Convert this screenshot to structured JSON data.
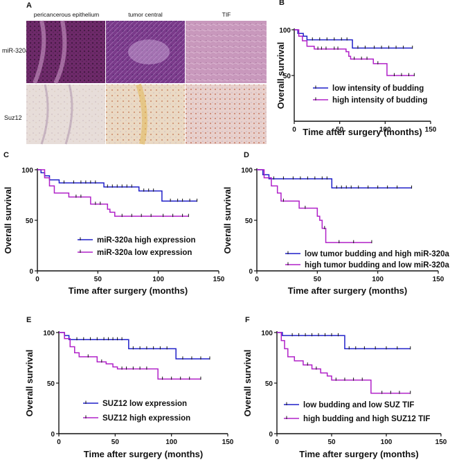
{
  "histology": {
    "panel_label": "A",
    "columns": [
      "pericancerous epithelium",
      "tumor central",
      "TIF"
    ],
    "rows": [
      "miR-320a",
      "Suz12"
    ],
    "tile_colors": {
      "miR-320a": [
        "#6e2a6a",
        "#7a3a8a",
        "#c898bc"
      ],
      "Suz12": [
        "#e7ddd9",
        "#ead9c4",
        "#e8d0cc"
      ]
    }
  },
  "chart_data": [
    {
      "panel": "B",
      "type": "line",
      "subtype": "kaplan-meier",
      "xlabel": "Time after surgery (months)",
      "ylabel": "Overall survival",
      "xlim": [
        0,
        150
      ],
      "ylim": [
        0,
        100
      ],
      "xticks": [
        "0",
        "50",
        "100",
        "150"
      ],
      "yticks": [
        "50",
        "100"
      ],
      "legend_position": "middle-right",
      "series": [
        {
          "name": "low intensity of budding",
          "color": "#1f1fc8",
          "steps": [
            [
              0,
              100
            ],
            [
              4,
              96
            ],
            [
              10,
              93
            ],
            [
              14,
              89
            ],
            [
              62,
              89
            ],
            [
              64,
              80
            ],
            [
              130,
              80
            ]
          ],
          "censors": [
            20,
            28,
            36,
            44,
            52,
            58,
            70,
            78,
            88,
            96,
            104,
            112,
            120,
            130
          ]
        },
        {
          "name": "high intensity of budding",
          "color": "#b020c8",
          "steps": [
            [
              0,
              100
            ],
            [
              5,
              93
            ],
            [
              9,
              88
            ],
            [
              14,
              82
            ],
            [
              22,
              79
            ],
            [
              55,
              79
            ],
            [
              57,
              76
            ],
            [
              60,
              71
            ],
            [
              62,
              68
            ],
            [
              84,
              68
            ],
            [
              87,
              63
            ],
            [
              100,
              63
            ],
            [
              102,
              50
            ],
            [
              132,
              50
            ]
          ],
          "censors": [
            26,
            30,
            35,
            44,
            48,
            66,
            74,
            80,
            92,
            110,
            118,
            126,
            132
          ]
        }
      ]
    },
    {
      "panel": "C",
      "type": "line",
      "subtype": "kaplan-meier",
      "xlabel": "Time after surgery (months)",
      "ylabel": "Overall survival",
      "xlim": [
        0,
        150
      ],
      "ylim": [
        0,
        100
      ],
      "xticks": [
        "0",
        "50",
        "100",
        "150"
      ],
      "yticks": [
        "0",
        "50",
        "100"
      ],
      "legend_position": "middle-right",
      "series": [
        {
          "name": "miR-320a high expression",
          "color": "#1f1fc8",
          "steps": [
            [
              0,
              100
            ],
            [
              3,
              97
            ],
            [
              6,
              94
            ],
            [
              10,
              90
            ],
            [
              18,
              87
            ],
            [
              52,
              87
            ],
            [
              55,
              83
            ],
            [
              82,
              83
            ],
            [
              84,
              79
            ],
            [
              100,
              79
            ],
            [
              103,
              69
            ],
            [
              132,
              69
            ]
          ],
          "censors": [
            22,
            30,
            36,
            40,
            44,
            48,
            58,
            62,
            66,
            70,
            74,
            78,
            88,
            92,
            96,
            110,
            116,
            120,
            126,
            132
          ]
        },
        {
          "name": "miR-320a low expression",
          "color": "#b020c8",
          "steps": [
            [
              0,
              100
            ],
            [
              6,
              92
            ],
            [
              10,
              84
            ],
            [
              14,
              77
            ],
            [
              26,
              73
            ],
            [
              40,
              73
            ],
            [
              44,
              66
            ],
            [
              56,
              66
            ],
            [
              58,
              61
            ],
            [
              60,
              58
            ],
            [
              64,
              54
            ],
            [
              125,
              54
            ]
          ],
          "censors": [
            32,
            36,
            48,
            52,
            70,
            78,
            86,
            94,
            104,
            112,
            120,
            125
          ]
        }
      ]
    },
    {
      "panel": "D",
      "type": "line",
      "subtype": "kaplan-meier",
      "xlabel": "Time after surgery (months)",
      "ylabel": "Overall survival",
      "xlim": [
        0,
        150
      ],
      "ylim": [
        0,
        100
      ],
      "xticks": [
        "0",
        "50",
        "100",
        "150"
      ],
      "yticks": [
        "0",
        "50",
        "100"
      ],
      "legend_position": "bottom-right",
      "series": [
        {
          "name": "low tumor budding and high miR-320a",
          "color": "#1f1fc8",
          "steps": [
            [
              0,
              100
            ],
            [
              5,
              95
            ],
            [
              10,
              91
            ],
            [
              60,
              91
            ],
            [
              62,
              82
            ],
            [
              128,
              82
            ]
          ],
          "censors": [
            14,
            22,
            30,
            36,
            42,
            48,
            54,
            58,
            66,
            70,
            74,
            78,
            84,
            92,
            100,
            108,
            116,
            128
          ]
        },
        {
          "name": "high tumor budding and low miR-320a",
          "color": "#b020c8",
          "steps": [
            [
              0,
              100
            ],
            [
              6,
              92
            ],
            [
              12,
              84
            ],
            [
              17,
              77
            ],
            [
              20,
              69
            ],
            [
              32,
              69
            ],
            [
              35,
              62
            ],
            [
              48,
              62
            ],
            [
              50,
              54
            ],
            [
              52,
              50
            ],
            [
              54,
              42
            ],
            [
              57,
              28
            ],
            [
              95,
              28
            ]
          ],
          "censors": [
            22,
            40,
            56,
            68,
            80,
            95
          ]
        }
      ]
    },
    {
      "panel": "E",
      "type": "line",
      "subtype": "kaplan-meier",
      "xlabel": "Time after surgery (months)",
      "ylabel": "Overall survival",
      "xlim": [
        0,
        150
      ],
      "ylim": [
        0,
        100
      ],
      "xticks": [
        "0",
        "50",
        "100",
        "150"
      ],
      "yticks": [
        "0",
        "50",
        "100"
      ],
      "legend_position": "bottom-right",
      "series": [
        {
          "name": "SUZ12 low expression",
          "color": "#1f1fc8",
          "steps": [
            [
              0,
              100
            ],
            [
              5,
              97
            ],
            [
              9,
              93
            ],
            [
              58,
              93
            ],
            [
              62,
              84
            ],
            [
              102,
              84
            ],
            [
              104,
              74
            ],
            [
              134,
              74
            ]
          ],
          "censors": [
            16,
            22,
            28,
            34,
            40,
            44,
            48,
            52,
            56,
            66,
            72,
            78,
            84,
            90,
            96,
            110,
            118,
            126,
            134
          ]
        },
        {
          "name": "SUZ12 high expression",
          "color": "#b020c8",
          "steps": [
            [
              0,
              100
            ],
            [
              5,
              94
            ],
            [
              10,
              86
            ],
            [
              14,
              80
            ],
            [
              18,
              76
            ],
            [
              30,
              76
            ],
            [
              34,
              71
            ],
            [
              42,
              69
            ],
            [
              48,
              66
            ],
            [
              52,
              64
            ],
            [
              84,
              64
            ],
            [
              88,
              54
            ],
            [
              126,
              54
            ]
          ],
          "censors": [
            26,
            38,
            56,
            60,
            66,
            72,
            78,
            92,
            100,
            108,
            116,
            126
          ]
        }
      ]
    },
    {
      "panel": "F",
      "type": "line",
      "subtype": "kaplan-meier",
      "xlabel": "Time after surgery (months)",
      "ylabel": "Overall survival",
      "xlim": [
        0,
        150
      ],
      "ylim": [
        0,
        100
      ],
      "xticks": [
        "0",
        "50",
        "100",
        "150"
      ],
      "yticks": [
        "0",
        "50",
        "100"
      ],
      "legend_position": "bottom-right",
      "series": [
        {
          "name": "low budding and low SUZ TIF",
          "color": "#1f1fc8",
          "steps": [
            [
              0,
              100
            ],
            [
              5,
              97
            ],
            [
              58,
              97
            ],
            [
              62,
              84
            ],
            [
              122,
              84
            ]
          ],
          "censors": [
            14,
            20,
            26,
            32,
            38,
            44,
            50,
            56,
            66,
            72,
            80,
            90,
            100,
            110,
            122
          ]
        },
        {
          "name": "high budding and high SUZ12 TIF",
          "color": "#b020c8",
          "steps": [
            [
              0,
              100
            ],
            [
              4,
              92
            ],
            [
              7,
              84
            ],
            [
              10,
              76
            ],
            [
              16,
              72
            ],
            [
              24,
              68
            ],
            [
              32,
              64
            ],
            [
              40,
              60
            ],
            [
              46,
              57
            ],
            [
              50,
              53
            ],
            [
              58,
              53
            ],
            [
              84,
              53
            ],
            [
              86,
              40
            ],
            [
              122,
              40
            ]
          ],
          "censors": [
            28,
            36,
            54,
            62,
            70,
            78,
            96,
            104,
            112,
            122
          ]
        }
      ]
    }
  ]
}
